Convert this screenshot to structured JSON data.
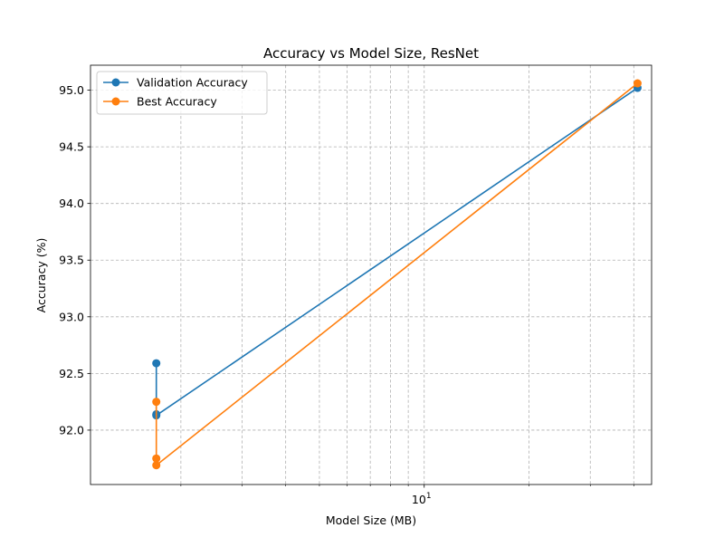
{
  "chart_data": {
    "type": "line",
    "title": "Accuracy vs Model Size, ResNet",
    "xlabel": "Model Size (MB)",
    "ylabel": "Accuracy (%)",
    "xscale": "log",
    "xlim": [
      1.1,
      45
    ],
    "ylim": [
      91.52,
      95.22
    ],
    "grid": true,
    "legend_position": "top-left",
    "x_ticks": [
      {
        "value": 10,
        "label": "10",
        "exponent": "1"
      }
    ],
    "y_ticks": [
      {
        "value": 92.0,
        "label": "92.0"
      },
      {
        "value": 92.5,
        "label": "92.5"
      },
      {
        "value": 93.0,
        "label": "93.0"
      },
      {
        "value": 93.5,
        "label": "93.5"
      },
      {
        "value": 94.0,
        "label": "94.0"
      },
      {
        "value": 94.5,
        "label": "94.5"
      },
      {
        "value": 95.0,
        "label": "95.0"
      }
    ],
    "series": [
      {
        "name": "Validation Accuracy",
        "color": "#1f77b4",
        "marker": "circle",
        "points": [
          {
            "x": 1.7,
            "y": 92.59
          },
          {
            "x": 1.7,
            "y": 92.14
          },
          {
            "x": 1.7,
            "y": 92.13
          },
          {
            "x": 41.0,
            "y": 95.02
          }
        ]
      },
      {
        "name": "Best Accuracy",
        "color": "#ff7f0e",
        "marker": "circle",
        "points": [
          {
            "x": 1.7,
            "y": 92.25
          },
          {
            "x": 1.7,
            "y": 91.75
          },
          {
            "x": 1.7,
            "y": 91.69
          },
          {
            "x": 41.0,
            "y": 95.06
          }
        ]
      }
    ]
  }
}
